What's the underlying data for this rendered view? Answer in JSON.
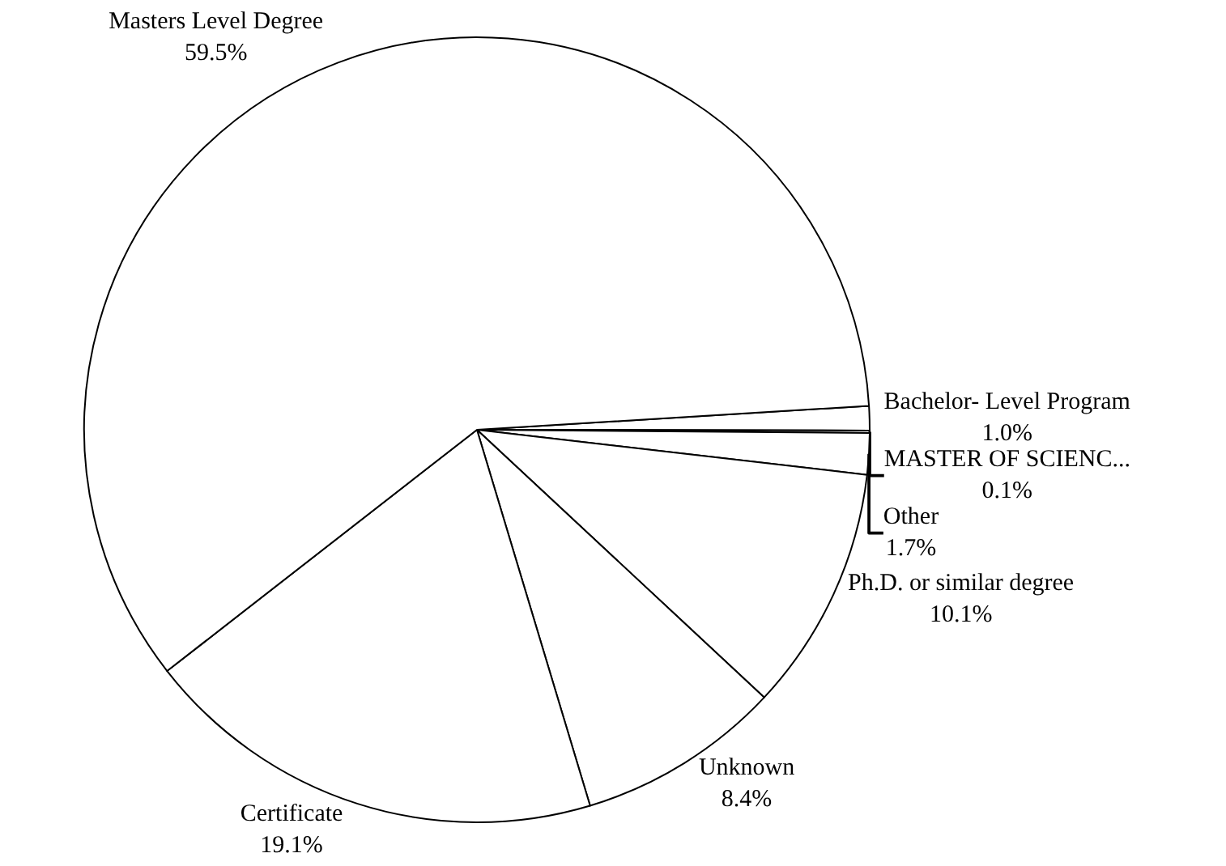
{
  "chart_data": {
    "type": "pie",
    "categories": [
      "Bachelor- Level Program",
      "MASTER OF SCIENC...",
      "Other",
      "Ph.D. or similar degree",
      "Unknown",
      "Certificate",
      "Masters Level Degree"
    ],
    "values": [
      1.0,
      0.1,
      1.7,
      10.1,
      8.4,
      19.1,
      59.5
    ],
    "value_labels": [
      "1.0%",
      "0.1%",
      "1.7%",
      "10.1%",
      "8.4%",
      "19.1%",
      "59.5%"
    ],
    "colors": [
      "#ffffff",
      "#ffffff",
      "#ffffff",
      "#ffffff",
      "#ffffff",
      "#ffffff",
      "#ffffff"
    ],
    "legend": false
  }
}
